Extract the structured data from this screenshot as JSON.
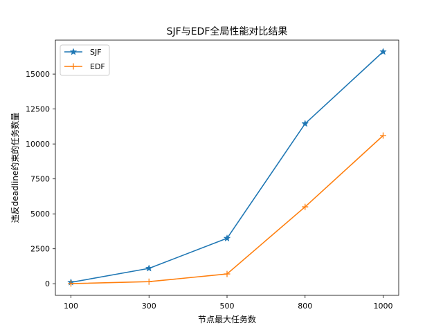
{
  "chart_data": {
    "type": "line",
    "title": "SJF与EDF全局性能对比结果",
    "xlabel": "节点最大任务数",
    "ylabel": "违反deadline约束的任务数量",
    "categories": [
      "100",
      "300",
      "500",
      "800",
      "1000"
    ],
    "y_ticks": [
      0,
      2500,
      5000,
      7500,
      10000,
      12500,
      15000
    ],
    "y_tick_labels": [
      "0",
      "2500",
      "5000",
      "7500",
      "10000",
      "12500",
      "15000"
    ],
    "ylim": [
      -830,
      17430
    ],
    "grid": false,
    "legend_position": "top-left",
    "series": [
      {
        "name": "SJF",
        "color": "#1f77b4",
        "marker": "star",
        "values": [
          100,
          1100,
          3250,
          11450,
          16600
        ]
      },
      {
        "name": "EDF",
        "color": "#ff7f0e",
        "marker": "plus",
        "values": [
          10,
          150,
          700,
          5500,
          10600
        ]
      }
    ]
  }
}
